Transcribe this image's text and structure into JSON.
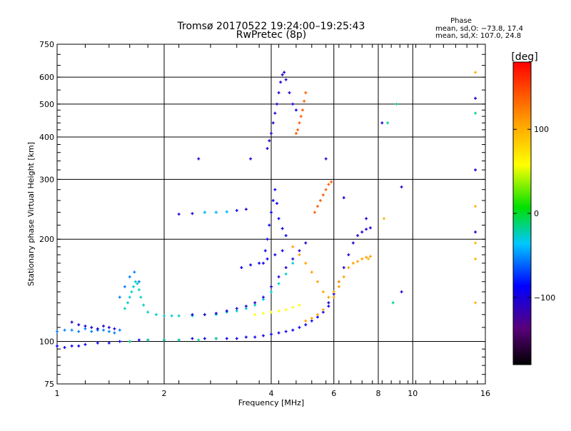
{
  "chart_data": {
    "type": "scatter",
    "title": "Tromsø 20170522 19:24:00–19:25:43",
    "subtitle": "RwPretec (8p)",
    "phase_box": {
      "heading": "Phase",
      "line_o": "mean, sd,O: −73.8, 17.4",
      "line_x": "mean, sd,X: 107.0, 24.8"
    },
    "xlabel": "Frequency [MHz]",
    "ylabel": "Stationary phase Virtual Height [km]",
    "x_scale": "log",
    "y_scale": "log",
    "xlim": [
      1,
      16
    ],
    "ylim": [
      75,
      750
    ],
    "x_ticks": [
      1,
      2,
      4,
      6,
      8,
      10,
      16
    ],
    "x_tick_labels": [
      "1",
      "2",
      "4",
      "6",
      "8",
      "10",
      "16"
    ],
    "y_ticks": [
      75,
      100,
      200,
      300,
      400,
      500,
      600,
      750
    ],
    "y_tick_labels": [
      "75",
      "100",
      "200",
      "300",
      "400",
      "500",
      "600",
      "750"
    ],
    "grid": true,
    "colorbar": {
      "label": "[deg]",
      "range": [
        -180,
        180
      ],
      "ticks": [
        100,
        0,
        -100
      ],
      "tick_labels": [
        "100",
        "0",
        "−100"
      ],
      "colormap": "rainbow"
    },
    "traces": [
      {
        "phase": -100,
        "points": [
          [
            1.0,
            97
          ],
          [
            1.05,
            96
          ],
          [
            1.1,
            97
          ],
          [
            1.15,
            97
          ],
          [
            1.2,
            98
          ],
          [
            1.3,
            99
          ],
          [
            1.4,
            99
          ],
          [
            1.5,
            100
          ],
          [
            1.6,
            100
          ],
          [
            1.7,
            101
          ],
          [
            1.8,
            101
          ],
          [
            2.0,
            101
          ],
          [
            2.2,
            101
          ],
          [
            2.4,
            102
          ],
          [
            2.6,
            102
          ],
          [
            2.8,
            102
          ],
          [
            3.0,
            102
          ],
          [
            3.2,
            102
          ],
          [
            3.4,
            103
          ],
          [
            3.6,
            103
          ],
          [
            3.8,
            104
          ],
          [
            4.0,
            105
          ],
          [
            4.2,
            106
          ],
          [
            4.4,
            107
          ],
          [
            4.6,
            108
          ],
          [
            4.8,
            110
          ],
          [
            5.0,
            112
          ],
          [
            5.2,
            115
          ],
          [
            5.4,
            118
          ],
          [
            5.6,
            122
          ],
          [
            5.8,
            127
          ]
        ]
      },
      {
        "phase": -20,
        "points": [
          [
            1.6,
            100
          ],
          [
            1.8,
            101
          ],
          [
            2.0,
            101
          ],
          [
            2.2,
            101
          ],
          [
            2.5,
            101
          ],
          [
            2.8,
            102
          ]
        ]
      },
      {
        "phase": -60,
        "points": [
          [
            1.0,
            107
          ],
          [
            1.05,
            108
          ],
          [
            1.1,
            108
          ],
          [
            1.15,
            107
          ],
          [
            1.2,
            109
          ],
          [
            1.25,
            107
          ],
          [
            1.3,
            108
          ],
          [
            1.35,
            108
          ],
          [
            1.4,
            107
          ],
          [
            1.45,
            106
          ],
          [
            1.5,
            108
          ]
        ]
      },
      {
        "phase": -110,
        "points": [
          [
            1.1,
            114
          ],
          [
            1.15,
            112
          ],
          [
            1.2,
            111
          ],
          [
            1.25,
            110
          ],
          [
            1.3,
            109
          ],
          [
            1.35,
            111
          ],
          [
            1.4,
            110
          ],
          [
            1.45,
            109
          ]
        ]
      },
      {
        "phase": -30,
        "points": [
          [
            1.55,
            125
          ],
          [
            1.58,
            130
          ],
          [
            1.6,
            135
          ],
          [
            1.62,
            140
          ],
          [
            1.64,
            145
          ],
          [
            1.66,
            150
          ],
          [
            1.68,
            148
          ],
          [
            1.7,
            142
          ],
          [
            1.72,
            135
          ],
          [
            1.75,
            128
          ],
          [
            1.8,
            122
          ],
          [
            1.9,
            120
          ],
          [
            2.0,
            119
          ],
          [
            2.1,
            119
          ],
          [
            2.2,
            119
          ],
          [
            2.4,
            119
          ],
          [
            2.6,
            120
          ],
          [
            2.8,
            120
          ],
          [
            3.0,
            122
          ],
          [
            3.2,
            123
          ],
          [
            3.4,
            125
          ],
          [
            3.6,
            128
          ],
          [
            3.8,
            133
          ],
          [
            4.0,
            140
          ],
          [
            4.2,
            148
          ],
          [
            4.4,
            158
          ],
          [
            4.6,
            170
          ]
        ]
      },
      {
        "phase": -60,
        "points": [
          [
            1.5,
            135
          ],
          [
            1.55,
            145
          ],
          [
            1.6,
            155
          ],
          [
            1.65,
            160
          ],
          [
            1.7,
            150
          ]
        ]
      },
      {
        "phase": -110,
        "points": [
          [
            2.4,
            120
          ],
          [
            2.6,
            120
          ],
          [
            2.8,
            121
          ],
          [
            3.0,
            123
          ],
          [
            3.2,
            125
          ],
          [
            3.4,
            127
          ],
          [
            3.6,
            130
          ],
          [
            3.8,
            135
          ],
          [
            4.0,
            145
          ],
          [
            4.2,
            155
          ],
          [
            4.4,
            165
          ],
          [
            4.6,
            175
          ],
          [
            4.8,
            185
          ],
          [
            5.0,
            195
          ]
        ]
      },
      {
        "phase": -100,
        "points": [
          [
            3.3,
            165
          ],
          [
            3.5,
            168
          ],
          [
            3.7,
            170
          ],
          [
            3.9,
            175
          ],
          [
            4.1,
            180
          ],
          [
            4.3,
            185
          ]
        ]
      },
      {
        "phase": 60,
        "points": [
          [
            3.6,
            120
          ],
          [
            3.8,
            121
          ],
          [
            4.0,
            122
          ],
          [
            4.2,
            123
          ],
          [
            4.4,
            124
          ],
          [
            4.6,
            126
          ],
          [
            4.8,
            128
          ]
        ]
      },
      {
        "phase": 110,
        "points": [
          [
            5.0,
            115
          ],
          [
            5.2,
            117
          ],
          [
            5.4,
            120
          ],
          [
            5.6,
            124
          ],
          [
            5.8,
            130
          ],
          [
            6.0,
            135
          ],
          [
            6.2,
            145
          ],
          [
            6.4,
            155
          ],
          [
            6.6,
            165
          ],
          [
            6.8,
            170
          ],
          [
            7.0,
            172
          ],
          [
            7.2,
            175
          ],
          [
            7.4,
            177
          ],
          [
            7.6,
            178
          ]
        ]
      },
      {
        "phase": -110,
        "points": [
          [
            5.8,
            130
          ],
          [
            6.0,
            138
          ],
          [
            6.2,
            150
          ],
          [
            6.4,
            165
          ],
          [
            6.6,
            180
          ],
          [
            6.8,
            195
          ],
          [
            7.0,
            205
          ],
          [
            7.2,
            210
          ],
          [
            7.4,
            214
          ],
          [
            7.6,
            216
          ]
        ]
      },
      {
        "phase": -110,
        "points": [
          [
            2.2,
            237
          ],
          [
            2.4,
            238
          ],
          [
            2.6,
            240
          ],
          [
            2.8,
            240
          ],
          [
            3.0,
            241
          ],
          [
            3.2,
            243
          ],
          [
            3.4,
            245
          ]
        ]
      },
      {
        "phase": -40,
        "points": [
          [
            2.6,
            240
          ],
          [
            2.8,
            240
          ],
          [
            3.0,
            241
          ]
        ]
      },
      {
        "phase": -100,
        "points": [
          [
            3.8,
            170
          ],
          [
            3.85,
            185
          ],
          [
            3.9,
            200
          ],
          [
            3.95,
            220
          ],
          [
            4.0,
            240
          ],
          [
            4.05,
            260
          ],
          [
            4.1,
            280
          ],
          [
            4.15,
            255
          ],
          [
            4.2,
            230
          ],
          [
            4.3,
            215
          ],
          [
            4.4,
            205
          ]
        ]
      },
      {
        "phase": 140,
        "points": [
          [
            5.3,
            240
          ],
          [
            5.4,
            250
          ],
          [
            5.5,
            260
          ],
          [
            5.6,
            270
          ],
          [
            5.7,
            280
          ],
          [
            5.8,
            290
          ],
          [
            5.9,
            295
          ]
        ]
      },
      {
        "phase": 110,
        "points": [
          [
            4.6,
            190
          ],
          [
            4.8,
            180
          ],
          [
            5.0,
            170
          ],
          [
            5.2,
            160
          ],
          [
            5.4,
            150
          ],
          [
            5.6,
            140
          ],
          [
            5.8,
            135
          ],
          [
            6.0,
            140
          ],
          [
            6.2,
            150
          ]
        ]
      },
      {
        "phase": -110,
        "points": [
          [
            3.9,
            370
          ],
          [
            3.95,
            390
          ],
          [
            4.0,
            410
          ],
          [
            4.05,
            440
          ],
          [
            4.1,
            470
          ],
          [
            4.15,
            500
          ],
          [
            4.2,
            540
          ],
          [
            4.25,
            580
          ],
          [
            4.3,
            610
          ],
          [
            4.35,
            620
          ],
          [
            4.4,
            590
          ],
          [
            4.5,
            540
          ],
          [
            4.6,
            500
          ],
          [
            4.7,
            480
          ]
        ]
      },
      {
        "phase": 140,
        "points": [
          [
            4.7,
            410
          ],
          [
            4.75,
            420
          ],
          [
            4.8,
            440
          ],
          [
            4.85,
            460
          ],
          [
            4.9,
            480
          ],
          [
            4.95,
            510
          ],
          [
            5.0,
            540
          ]
        ]
      },
      {
        "phase": -110,
        "points": [
          [
            2.5,
            345
          ],
          [
            3.5,
            345
          ],
          [
            5.7,
            345
          ],
          [
            6.4,
            265
          ],
          [
            7.4,
            230
          ],
          [
            8.2,
            440
          ],
          [
            9.3,
            285
          ],
          [
            9.3,
            140
          ],
          [
            15.0,
            520
          ],
          [
            15.0,
            320
          ],
          [
            15.0,
            210
          ]
        ]
      },
      {
        "phase": -20,
        "points": [
          [
            8.5,
            440
          ],
          [
            9.0,
            500
          ],
          [
            8.8,
            130
          ],
          [
            15.0,
            470
          ]
        ]
      },
      {
        "phase": 100,
        "points": [
          [
            7.5,
            175
          ],
          [
            8.3,
            230
          ],
          [
            15.0,
            620
          ],
          [
            15.0,
            250
          ],
          [
            15.0,
            175
          ],
          [
            15.0,
            130
          ],
          [
            15.0,
            195
          ]
        ]
      }
    ]
  }
}
